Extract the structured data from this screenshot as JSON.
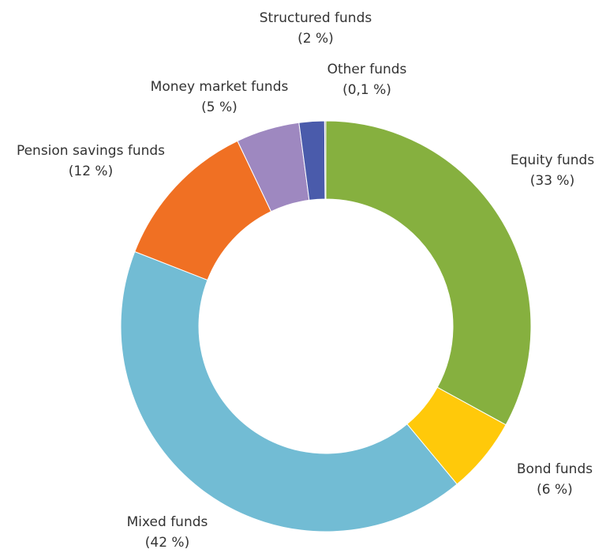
{
  "chart_data": {
    "type": "donut",
    "categories": [
      "Equity funds",
      "Bond funds",
      "Mixed funds",
      "Pension savings funds",
      "Money market funds",
      "Structured funds",
      "Other funds"
    ],
    "values": [
      33,
      6,
      42,
      12,
      5,
      2,
      0.1
    ],
    "value_labels": [
      "(33 %)",
      "(6 %)",
      "(42 %)",
      "(12 %)",
      "(5 %)",
      "(2 %)",
      "(0,1 %)"
    ],
    "colors": [
      "#86b03f",
      "#ffc90a",
      "#72bcd4",
      "#f07023",
      "#9e88c0",
      "#4a5bab",
      "#9a9a9a"
    ]
  }
}
